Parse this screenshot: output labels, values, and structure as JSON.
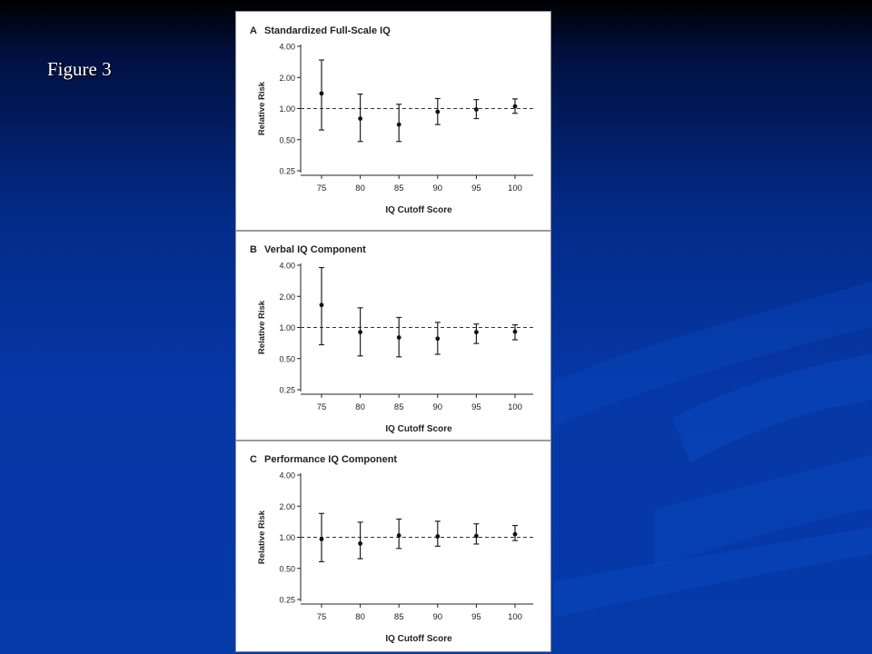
{
  "slide": {
    "title": "Figure 3"
  },
  "chart_data": [
    {
      "type": "scatter",
      "panel_letter": "A",
      "title": "Standardized Full-Scale IQ",
      "xlabel": "IQ Cutoff Score",
      "ylabel": "Relative Risk",
      "y_scale": "log",
      "yticks": [
        4.0,
        2.0,
        1.0,
        0.5,
        0.25
      ],
      "yticklabels": [
        "4.00",
        "2.00",
        "1.00",
        "0.50",
        "0.25"
      ],
      "ylim": [
        0.25,
        4.0
      ],
      "x": [
        75,
        80,
        85,
        90,
        95,
        100
      ],
      "xticklabels": [
        "75",
        "80",
        "85",
        "90",
        "95",
        "100"
      ],
      "reference_line": 1.0,
      "series": [
        {
          "values": [
            1.4,
            0.8,
            0.7,
            0.93,
            0.98,
            1.05
          ],
          "lower": [
            0.62,
            0.48,
            0.48,
            0.7,
            0.8,
            0.9
          ],
          "upper": [
            2.95,
            1.38,
            1.1,
            1.25,
            1.22,
            1.24
          ]
        }
      ]
    },
    {
      "type": "scatter",
      "panel_letter": "B",
      "title": "Verbal IQ Component",
      "xlabel": "IQ Cutoff Score",
      "ylabel": "Relative Risk",
      "y_scale": "log",
      "yticks": [
        4.0,
        2.0,
        1.0,
        0.5,
        0.25
      ],
      "yticklabels": [
        "4.00",
        "2.00",
        "1.00",
        "0.50",
        "0.25"
      ],
      "ylim": [
        0.25,
        4.0
      ],
      "x": [
        75,
        80,
        85,
        90,
        95,
        100
      ],
      "xticklabels": [
        "75",
        "80",
        "85",
        "90",
        "95",
        "100"
      ],
      "reference_line": 1.0,
      "series": [
        {
          "values": [
            1.65,
            0.9,
            0.8,
            0.78,
            0.9,
            0.91
          ],
          "lower": [
            0.68,
            0.53,
            0.52,
            0.55,
            0.7,
            0.76
          ],
          "upper": [
            3.8,
            1.55,
            1.25,
            1.12,
            1.08,
            1.06
          ]
        }
      ]
    },
    {
      "type": "scatter",
      "panel_letter": "C",
      "title": "Performance IQ Component",
      "xlabel": "IQ Cutoff Score",
      "ylabel": "Relative Risk",
      "y_scale": "log",
      "yticks": [
        4.0,
        2.0,
        1.0,
        0.5,
        0.25
      ],
      "yticklabels": [
        "4.00",
        "2.00",
        "1.00",
        "0.50",
        "0.25"
      ],
      "ylim": [
        0.25,
        4.0
      ],
      "x": [
        75,
        80,
        85,
        90,
        95,
        100
      ],
      "xticklabels": [
        "75",
        "80",
        "85",
        "90",
        "95",
        "100"
      ],
      "reference_line": 1.0,
      "series": [
        {
          "values": [
            0.96,
            0.87,
            1.04,
            1.02,
            1.03,
            1.07
          ],
          "lower": [
            0.58,
            0.62,
            0.78,
            0.82,
            0.86,
            0.93
          ],
          "upper": [
            1.7,
            1.4,
            1.5,
            1.43,
            1.35,
            1.3
          ]
        }
      ]
    }
  ]
}
